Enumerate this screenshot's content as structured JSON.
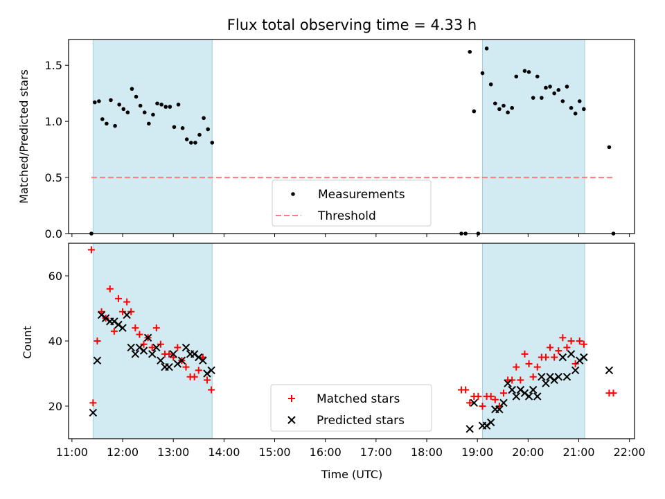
{
  "chart_data": [
    {
      "type": "scatter",
      "title": "Flux total observing time = 4.33 h",
      "xlabel": "",
      "ylabel": "Matched/Predicted stars",
      "xlim": [
        "10:56",
        "22:06"
      ],
      "ylim": [
        0,
        1.73
      ],
      "yticks": [
        "0.0",
        "0.5",
        "1.0",
        "1.5"
      ],
      "ytick_values": [
        0,
        0.5,
        1.0,
        1.5
      ],
      "shaded_intervals": [
        [
          "11:25",
          "13:46"
        ],
        [
          "19:06",
          "21:07"
        ]
      ],
      "shade_color": "#add8e6",
      "legend": {
        "placement": "lower center",
        "entries": [
          "Measurements",
          "Threshold"
        ]
      },
      "threshold": {
        "name": "Threshold",
        "value": 0.5,
        "x_range": [
          "11:23",
          "21:41"
        ],
        "color": "#ff7b7b",
        "style": "dashed"
      },
      "series": [
        {
          "name": "Measurements",
          "color": "#000000",
          "points": [
            [
              "11:23",
              0
            ],
            [
              "11:27",
              1.17
            ],
            [
              "11:32",
              1.18
            ],
            [
              "11:36",
              1.02
            ],
            [
              "11:41",
              0.98
            ],
            [
              "11:46",
              1.19
            ],
            [
              "11:51",
              0.96
            ],
            [
              "11:56",
              1.15
            ],
            [
              "12:01",
              1.11
            ],
            [
              "12:06",
              1.08
            ],
            [
              "12:11",
              1.29
            ],
            [
              "12:16",
              1.22
            ],
            [
              "12:21",
              1.14
            ],
            [
              "12:26",
              1.08
            ],
            [
              "12:31",
              0.98
            ],
            [
              "12:36",
              1.06
            ],
            [
              "12:41",
              1.16
            ],
            [
              "12:46",
              1.15
            ],
            [
              "12:51",
              1.13
            ],
            [
              "12:56",
              1.13
            ],
            [
              "13:01",
              0.95
            ],
            [
              "13:06",
              1.15
            ],
            [
              "13:11",
              0.94
            ],
            [
              "13:16",
              0.84
            ],
            [
              "13:21",
              0.81
            ],
            [
              "13:26",
              0.81
            ],
            [
              "13:31",
              0.88
            ],
            [
              "13:36",
              1.03
            ],
            [
              "13:41",
              0.93
            ],
            [
              "13:46",
              0.81
            ],
            [
              "18:41",
              0
            ],
            [
              "18:46",
              0
            ],
            [
              "18:51",
              1.62
            ],
            [
              "18:56",
              1.09
            ],
            [
              "19:01",
              0
            ],
            [
              "19:06",
              1.43
            ],
            [
              "19:11",
              1.65
            ],
            [
              "19:16",
              1.33
            ],
            [
              "19:21",
              1.16
            ],
            [
              "19:26",
              1.11
            ],
            [
              "19:31",
              1.14
            ],
            [
              "19:36",
              1.08
            ],
            [
              "19:41",
              1.12
            ],
            [
              "19:46",
              1.4
            ],
            [
              "19:56",
              1.45
            ],
            [
              "20:01",
              1.44
            ],
            [
              "20:06",
              1.21
            ],
            [
              "20:11",
              1.4
            ],
            [
              "20:16",
              1.21
            ],
            [
              "20:21",
              1.3
            ],
            [
              "20:26",
              1.31
            ],
            [
              "20:31",
              1.25
            ],
            [
              "20:36",
              1.28
            ],
            [
              "20:41",
              1.18
            ],
            [
              "20:46",
              1.31
            ],
            [
              "20:51",
              1.12
            ],
            [
              "20:56",
              1.07
            ],
            [
              "21:01",
              1.18
            ],
            [
              "21:06",
              1.11
            ],
            [
              "21:36",
              0.77
            ],
            [
              "21:41",
              0
            ]
          ]
        }
      ]
    },
    {
      "type": "scatter",
      "title": "",
      "xlabel": "Time (UTC)",
      "ylabel": "Count",
      "xlim": [
        "10:56",
        "22:06"
      ],
      "ylim": [
        10,
        70
      ],
      "yticks": [
        "20",
        "40",
        "60"
      ],
      "ytick_values": [
        20,
        40,
        60
      ],
      "xticks": [
        "11:00",
        "12:00",
        "13:00",
        "14:00",
        "15:00",
        "16:00",
        "17:00",
        "18:00",
        "19:00",
        "20:00",
        "21:00",
        "22:00"
      ],
      "shaded_intervals": [
        [
          "11:25",
          "13:46"
        ],
        [
          "19:06",
          "21:07"
        ]
      ],
      "shade_color": "#add8e6",
      "legend": {
        "placement": "lower center",
        "entries": [
          "Matched stars",
          "Predicted stars"
        ]
      },
      "series": [
        {
          "name": "Matched stars",
          "marker": "+",
          "color": "#ff0000",
          "points": [
            [
              "11:23",
              68
            ],
            [
              "11:25",
              21
            ],
            [
              "11:30",
              40
            ],
            [
              "11:35",
              49
            ],
            [
              "11:40",
              47
            ],
            [
              "11:45",
              56
            ],
            [
              "11:50",
              43
            ],
            [
              "11:55",
              53
            ],
            [
              "12:00",
              49
            ],
            [
              "12:05",
              52
            ],
            [
              "12:10",
              49
            ],
            [
              "12:15",
              44
            ],
            [
              "12:20",
              42
            ],
            [
              "12:25",
              39
            ],
            [
              "12:30",
              41
            ],
            [
              "12:35",
              38
            ],
            [
              "12:40",
              44
            ],
            [
              "12:45",
              39
            ],
            [
              "12:50",
              36
            ],
            [
              "12:55",
              36
            ],
            [
              "13:00",
              35
            ],
            [
              "13:05",
              38
            ],
            [
              "13:10",
              34
            ],
            [
              "13:15",
              32
            ],
            [
              "13:20",
              29
            ],
            [
              "13:25",
              29
            ],
            [
              "13:30",
              31
            ],
            [
              "13:35",
              35
            ],
            [
              "13:40",
              28
            ],
            [
              "13:45",
              25
            ],
            [
              "18:41",
              25
            ],
            [
              "18:46",
              25
            ],
            [
              "18:51",
              21
            ],
            [
              "18:56",
              23
            ],
            [
              "19:01",
              23
            ],
            [
              "19:06",
              20
            ],
            [
              "19:11",
              23
            ],
            [
              "19:16",
              23
            ],
            [
              "19:21",
              22
            ],
            [
              "19:26",
              20
            ],
            [
              "19:31",
              24
            ],
            [
              "19:36",
              28
            ],
            [
              "19:41",
              28
            ],
            [
              "19:46",
              32
            ],
            [
              "19:51",
              28
            ],
            [
              "19:56",
              36
            ],
            [
              "20:01",
              33
            ],
            [
              "20:06",
              29
            ],
            [
              "20:11",
              32
            ],
            [
              "20:16",
              35
            ],
            [
              "20:21",
              35
            ],
            [
              "20:26",
              38
            ],
            [
              "20:31",
              35
            ],
            [
              "20:36",
              37
            ],
            [
              "20:41",
              41
            ],
            [
              "20:46",
              38
            ],
            [
              "20:51",
              40
            ],
            [
              "20:56",
              33
            ],
            [
              "21:01",
              40
            ],
            [
              "21:06",
              39
            ],
            [
              "21:36",
              24
            ],
            [
              "21:41",
              24
            ]
          ]
        },
        {
          "name": "Predicted stars",
          "marker": "x",
          "color": "#000000",
          "points": [
            [
              "11:25",
              18
            ],
            [
              "11:30",
              34
            ],
            [
              "11:35",
              48
            ],
            [
              "11:40",
              47
            ],
            [
              "11:45",
              46
            ],
            [
              "11:50",
              46
            ],
            [
              "11:55",
              45
            ],
            [
              "12:00",
              44
            ],
            [
              "12:05",
              48
            ],
            [
              "12:10",
              38
            ],
            [
              "12:15",
              36
            ],
            [
              "12:20",
              38
            ],
            [
              "12:25",
              37
            ],
            [
              "12:30",
              41
            ],
            [
              "12:35",
              36
            ],
            [
              "12:40",
              38
            ],
            [
              "12:45",
              34
            ],
            [
              "12:50",
              32
            ],
            [
              "12:55",
              32
            ],
            [
              "13:00",
              36
            ],
            [
              "13:05",
              33
            ],
            [
              "13:10",
              34
            ],
            [
              "13:15",
              38
            ],
            [
              "13:20",
              36
            ],
            [
              "13:25",
              36
            ],
            [
              "13:30",
              35
            ],
            [
              "13:35",
              34
            ],
            [
              "13:40",
              30
            ],
            [
              "13:45",
              31
            ],
            [
              "18:51",
              13
            ],
            [
              "18:56",
              21
            ],
            [
              "19:06",
              14
            ],
            [
              "19:11",
              14
            ],
            [
              "19:16",
              15
            ],
            [
              "19:21",
              19
            ],
            [
              "19:26",
              19
            ],
            [
              "19:31",
              21
            ],
            [
              "19:36",
              27
            ],
            [
              "19:41",
              25
            ],
            [
              "19:46",
              23
            ],
            [
              "19:51",
              25
            ],
            [
              "19:56",
              24
            ],
            [
              "20:01",
              23
            ],
            [
              "20:06",
              25
            ],
            [
              "20:11",
              23
            ],
            [
              "20:16",
              29
            ],
            [
              "20:21",
              27
            ],
            [
              "20:26",
              29
            ],
            [
              "20:31",
              28
            ],
            [
              "20:36",
              29
            ],
            [
              "20:41",
              35
            ],
            [
              "20:46",
              29
            ],
            [
              "20:51",
              36
            ],
            [
              "20:56",
              31
            ],
            [
              "21:01",
              34
            ],
            [
              "21:06",
              35
            ],
            [
              "21:36",
              31
            ]
          ]
        }
      ]
    }
  ]
}
